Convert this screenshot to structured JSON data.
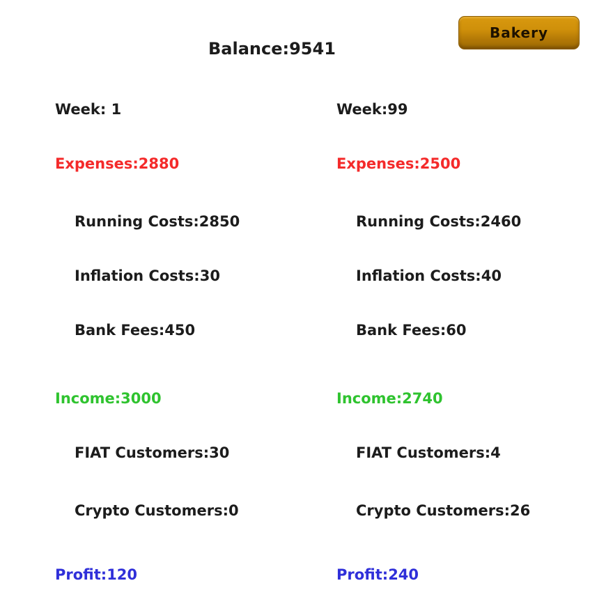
{
  "screen": {
    "balance": {
      "label": "Balance:",
      "value": "9541"
    },
    "shop_button": {
      "label": "Bakery"
    }
  },
  "colors": {
    "text": "#1c1c1c",
    "expenses": "#f42a2a",
    "income": "#2fc32f",
    "profit": "#2f2fd9",
    "button-top": "#d9990f",
    "button-bottom": "#9c6a04",
    "button-text": "#1d1100"
  },
  "reports": [
    {
      "week_label": "Week: ",
      "week_value": "1",
      "expenses_label": "Expenses:",
      "expenses_value": "2880",
      "running_costs_label": "Running Costs:",
      "running_costs_value": "2850",
      "inflation_costs_label": "Inflation Costs:",
      "inflation_costs_value": "30",
      "bank_fees_label": "Bank Fees:",
      "bank_fees_value": "450",
      "income_label": "Income:",
      "income_value": "3000",
      "fiat_customers_label": "FIAT Customers:",
      "fiat_customers_value": "30",
      "crypto_customers_label": "Crypto Customers:",
      "crypto_customers_value": "0",
      "profit_label": "Profit:",
      "profit_value": "120"
    },
    {
      "week_label": "Week:",
      "week_value": "99",
      "expenses_label": "Expenses:",
      "expenses_value": "2500",
      "running_costs_label": "Running Costs:",
      "running_costs_value": "2460",
      "inflation_costs_label": "Inflation Costs:",
      "inflation_costs_value": "40",
      "bank_fees_label": "Bank Fees:",
      "bank_fees_value": "60",
      "income_label": "Income:",
      "income_value": "2740",
      "fiat_customers_label": "FIAT Customers:",
      "fiat_customers_value": "4",
      "crypto_customers_label": "Crypto Customers:",
      "crypto_customers_value": "26",
      "profit_label": "Profit:",
      "profit_value": "240"
    }
  ]
}
